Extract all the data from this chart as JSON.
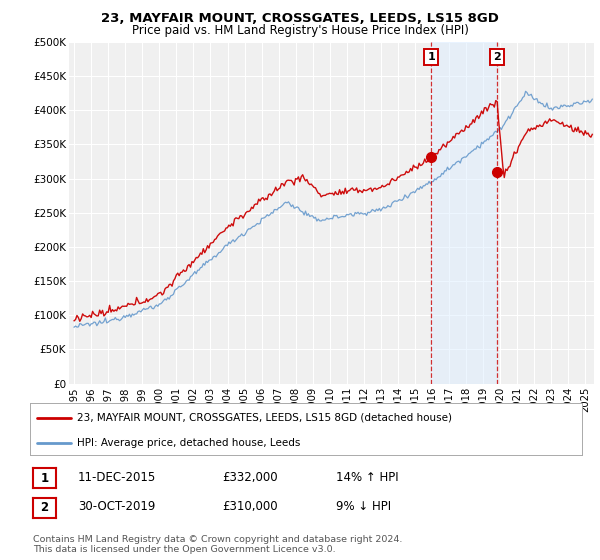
{
  "title": "23, MAYFAIR MOUNT, CROSSGATES, LEEDS, LS15 8GD",
  "subtitle": "Price paid vs. HM Land Registry's House Price Index (HPI)",
  "ylabel_ticks": [
    "£0",
    "£50K",
    "£100K",
    "£150K",
    "£200K",
    "£250K",
    "£300K",
    "£350K",
    "£400K",
    "£450K",
    "£500K"
  ],
  "ytick_values": [
    0,
    50000,
    100000,
    150000,
    200000,
    250000,
    300000,
    350000,
    400000,
    450000,
    500000
  ],
  "ylim": [
    0,
    500000
  ],
  "xlim_start": 1994.7,
  "xlim_end": 2025.5,
  "sale1_date": 2015.95,
  "sale1_price": 332000,
  "sale1_label": "1",
  "sale2_date": 2019.83,
  "sale2_price": 310000,
  "sale2_label": "2",
  "red_color": "#cc0000",
  "blue_color": "#6699cc",
  "annotation_box_color": "#cc0000",
  "shade_color": "#ddeeff",
  "legend_line1": "23, MAYFAIR MOUNT, CROSSGATES, LEEDS, LS15 8GD (detached house)",
  "legend_line2": "HPI: Average price, detached house, Leeds",
  "table_row1": [
    "1",
    "11-DEC-2015",
    "£332,000",
    "14% ↑ HPI"
  ],
  "table_row2": [
    "2",
    "30-OCT-2019",
    "£310,000",
    "9% ↓ HPI"
  ],
  "footnote": "Contains HM Land Registry data © Crown copyright and database right 2024.\nThis data is licensed under the Open Government Licence v3.0.",
  "bg_color": "#ffffff",
  "plot_bg_color": "#f0f0f0",
  "grid_color": "#ffffff"
}
